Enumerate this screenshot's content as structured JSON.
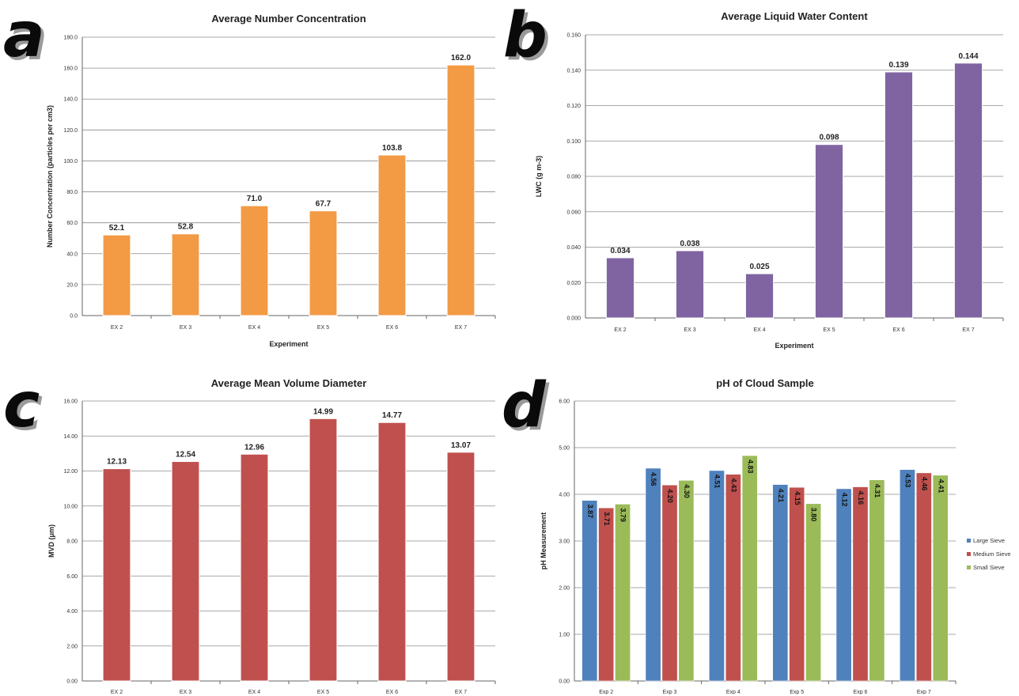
{
  "panels": [
    {
      "letter": "a"
    },
    {
      "letter": "b"
    },
    {
      "letter": "c"
    },
    {
      "letter": "d"
    }
  ],
  "chart_data": [
    {
      "type": "bar",
      "title": "Average Number Concentration",
      "xlabel": "Experiment",
      "ylabel": "Number Concentration (particles per cm3)",
      "categories": [
        "EX 2",
        "EX 3",
        "EX 4",
        "EX 5",
        "EX 6",
        "EX 7"
      ],
      "values": [
        52.1,
        52.8,
        71.0,
        67.7,
        103.8,
        162.0
      ],
      "value_labels": [
        "52.1",
        "52.8",
        "71.0",
        "67.7",
        "103.8",
        "162.0"
      ],
      "ylim": [
        0,
        180
      ],
      "yticks": [
        "0.0",
        "20.0",
        "40.0",
        "60.0",
        "80.0",
        "100.0",
        "120.0",
        "140.0",
        "160.0",
        "180.0"
      ],
      "grid": true,
      "color": "#f39a45"
    },
    {
      "type": "bar",
      "title": "Average Liquid Water Content",
      "xlabel": "Experiment",
      "ylabel": "LWC (g m-3)",
      "categories": [
        "EX 2",
        "EX 3",
        "EX 4",
        "EX 5",
        "EX 6",
        "EX 7"
      ],
      "values": [
        0.034,
        0.038,
        0.025,
        0.098,
        0.139,
        0.144
      ],
      "value_labels": [
        "0.034",
        "0.038",
        "0.025",
        "0.098",
        "0.139",
        "0.144"
      ],
      "ylim": [
        0,
        0.16
      ],
      "yticks": [
        "0.000",
        "0.020",
        "0.040",
        "0.060",
        "0.080",
        "0.100",
        "0.120",
        "0.140",
        "0.160"
      ],
      "grid": true,
      "color": "#8064a2"
    },
    {
      "type": "bar",
      "title": "Average Mean Volume Diameter",
      "xlabel": "",
      "ylabel": "MVD (μm)",
      "categories": [
        "EX 2",
        "EX 3",
        "EX 4",
        "EX 5",
        "EX 6",
        "EX 7"
      ],
      "values": [
        12.13,
        12.54,
        12.96,
        14.99,
        14.77,
        13.07
      ],
      "value_labels": [
        "12.13",
        "12.54",
        "12.96",
        "14.99",
        "14.77",
        "13.07"
      ],
      "ylim": [
        0,
        16
      ],
      "yticks": [
        "0.00",
        "2.00",
        "4.00",
        "6.00",
        "8.00",
        "10.00",
        "12.00",
        "14.00",
        "16.00"
      ],
      "grid": true,
      "color": "#c0504d"
    },
    {
      "type": "bar",
      "title": "pH of Cloud Sample",
      "xlabel": "",
      "ylabel": "pH Measurement",
      "categories": [
        "Exp 2",
        "Exp 3",
        "Exp 4",
        "Exp 5",
        "Exp 6",
        "Exp 7"
      ],
      "series": [
        {
          "name": "Large Sieve",
          "color": "#4f81bd",
          "values": [
            3.87,
            4.56,
            4.51,
            4.21,
            4.12,
            4.53
          ],
          "value_labels": [
            "3.87",
            "4.56",
            "4.51",
            "4.21",
            "4.12",
            "4.53"
          ]
        },
        {
          "name": "Medium Sieve",
          "color": "#c0504d",
          "values": [
            3.71,
            4.2,
            4.43,
            4.15,
            4.16,
            4.46
          ],
          "value_labels": [
            "3.71",
            "4.20",
            "4.43",
            "4.15",
            "4.16",
            "4.46"
          ]
        },
        {
          "name": "Small Sieve",
          "color": "#9bbb59",
          "values": [
            3.79,
            4.3,
            4.83,
            3.8,
            4.31,
            4.41
          ],
          "value_labels": [
            "3.79",
            "4.30",
            "4.83",
            "3.80",
            "4.31",
            "4.41"
          ]
        }
      ],
      "ylim": [
        0,
        6
      ],
      "yticks": [
        "0.00",
        "1.00",
        "2.00",
        "3.00",
        "4.00",
        "5.00",
        "6.00"
      ],
      "grid": true,
      "legend": "right"
    }
  ]
}
